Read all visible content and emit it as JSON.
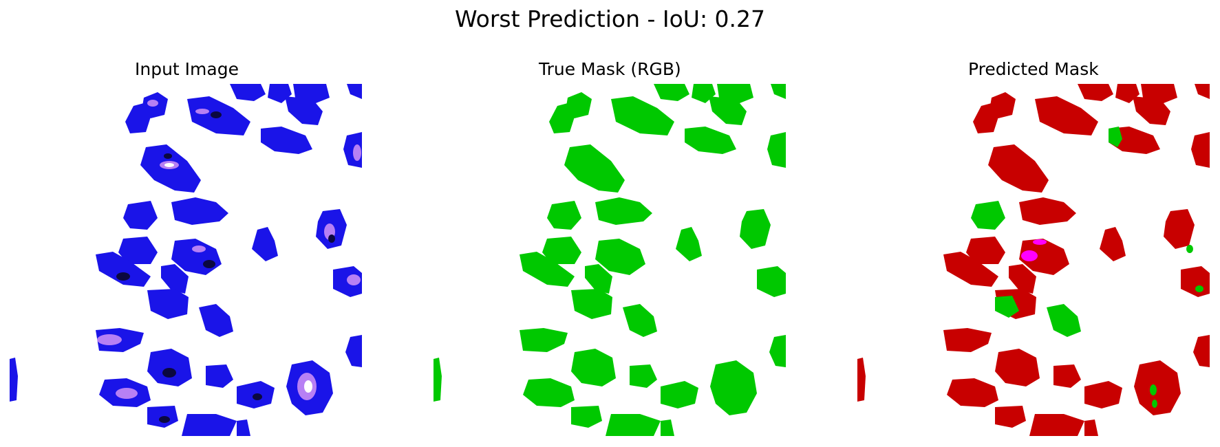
{
  "figure": {
    "suptitle": "Worst Prediction - IoU: 0.27"
  },
  "panels": [
    {
      "title": "Input Image"
    },
    {
      "title": "True Mask (RGB)"
    },
    {
      "title": "Predicted Mask"
    }
  ],
  "colors": {
    "background": "#ffffff",
    "nucleus_input": "#1a14e8",
    "nucleus_input_bright": "#c98cf5",
    "nucleus_input_dark": "#0b0840",
    "true_mask": "#00c800",
    "pred_mask_red": "#c80000",
    "pred_mask_green": "#00c800",
    "pred_mask_magenta": "#ff00ff"
  }
}
